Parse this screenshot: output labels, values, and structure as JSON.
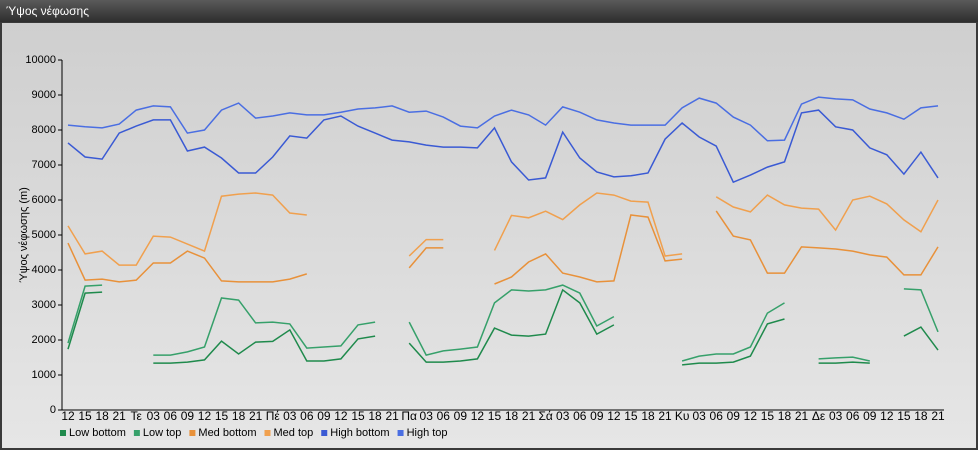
{
  "chart_data": {
    "type": "line",
    "title": "Ύψος νέφωσης",
    "ylabel": "Ύψος νέφωσης (m)",
    "categories": [
      "12",
      "15",
      "18",
      "21",
      "Τε",
      "03",
      "06",
      "09",
      "12",
      "15",
      "18",
      "21",
      "Πέ",
      "03",
      "06",
      "09",
      "12",
      "15",
      "18",
      "21",
      "Πα",
      "03",
      "06",
      "09",
      "12",
      "15",
      "18",
      "21",
      "Σά",
      "03",
      "06",
      "09",
      "12",
      "15",
      "18",
      "21",
      "Κυ",
      "03",
      "06",
      "09",
      "12",
      "15",
      "18",
      "21",
      "Δε",
      "03",
      "06",
      "09",
      "12",
      "15",
      "18",
      "21"
    ],
    "series": [
      {
        "name": "Low bottom",
        "color": "#1f8a4c",
        "values": [
          1740,
          3340,
          3370,
          null,
          null,
          1340,
          1340,
          1370,
          1430,
          1970,
          1600,
          1940,
          1960,
          2290,
          1400,
          1400,
          1460,
          2030,
          2110,
          null,
          1910,
          1370,
          1370,
          1400,
          1460,
          2340,
          2140,
          2110,
          2170,
          3430,
          3060,
          2170,
          2430,
          null,
          null,
          null,
          1290,
          1340,
          1340,
          1370,
          1540,
          2460,
          2600,
          null,
          1340,
          1340,
          1370,
          1340,
          null,
          2110,
          2370,
          1710
        ]
      },
      {
        "name": "Low top",
        "color": "#36a06a",
        "values": [
          1910,
          3540,
          3570,
          null,
          null,
          1570,
          1570,
          1660,
          1800,
          3200,
          3140,
          2490,
          2510,
          2460,
          1770,
          1800,
          1830,
          2430,
          2510,
          null,
          2510,
          1570,
          1690,
          1740,
          1800,
          3060,
          3430,
          3400,
          3430,
          3570,
          3340,
          2400,
          2670,
          null,
          null,
          null,
          1400,
          1540,
          1600,
          1600,
          1800,
          2770,
          3060,
          null,
          1460,
          1490,
          1510,
          1400,
          null,
          3460,
          3430,
          2230
        ]
      },
      {
        "name": "Med bottom",
        "color": "#e8913a",
        "values": [
          4770,
          3710,
          3740,
          3660,
          3710,
          4200,
          4200,
          4540,
          4340,
          3690,
          3660,
          3660,
          3660,
          3740,
          3890,
          null,
          null,
          null,
          null,
          null,
          4060,
          4630,
          4630,
          null,
          null,
          3600,
          3800,
          4230,
          4460,
          3910,
          3800,
          3660,
          3690,
          5570,
          5510,
          4260,
          4310,
          null,
          5690,
          4970,
          4860,
          3910,
          3910,
          4660,
          4630,
          4600,
          4540,
          4430,
          4370,
          3860,
          3860,
          4660
        ]
      },
      {
        "name": "Med top",
        "color": "#f0a04e",
        "values": [
          5260,
          4460,
          4540,
          4140,
          4140,
          4970,
          4940,
          4740,
          4540,
          6110,
          6170,
          6200,
          6140,
          5630,
          5570,
          null,
          null,
          null,
          null,
          null,
          4400,
          4870,
          4870,
          null,
          null,
          4560,
          5560,
          5490,
          5680,
          5440,
          5860,
          6200,
          6140,
          5970,
          5940,
          4400,
          4460,
          null,
          6090,
          5800,
          5660,
          6140,
          5860,
          5770,
          5740,
          5140,
          6000,
          6110,
          5890,
          5430,
          5090,
          6000
        ]
      },
      {
        "name": "High bottom",
        "color": "#3a5ad4",
        "values": [
          7630,
          7230,
          7170,
          7910,
          8110,
          8290,
          8290,
          7400,
          7510,
          7200,
          6770,
          6770,
          7230,
          7830,
          7770,
          8290,
          8400,
          8110,
          7910,
          7710,
          7660,
          7570,
          7510,
          7510,
          7490,
          8060,
          7090,
          6570,
          6630,
          7940,
          7200,
          6800,
          6660,
          6690,
          6770,
          7740,
          8200,
          7800,
          7540,
          6510,
          6710,
          6940,
          7090,
          8490,
          8570,
          8090,
          8000,
          7490,
          7290,
          6740,
          7370,
          6630
        ]
      },
      {
        "name": "High top",
        "color": "#4a6ee2",
        "values": [
          8140,
          8090,
          8060,
          8170,
          8570,
          8690,
          8660,
          7910,
          8000,
          8570,
          8770,
          8340,
          8400,
          8490,
          8430,
          8430,
          8510,
          8600,
          8630,
          8690,
          8510,
          8540,
          8370,
          8110,
          8060,
          8400,
          8570,
          8430,
          8140,
          8660,
          8510,
          8290,
          8200,
          8140,
          8140,
          8140,
          8630,
          8910,
          8770,
          8370,
          8140,
          7690,
          7710,
          8740,
          8940,
          8890,
          8860,
          8600,
          8490,
          8310,
          8630,
          8690
        ]
      }
    ],
    "ylim": [
      0,
      10000
    ],
    "yticks": [
      0,
      1000,
      2000,
      3000,
      4000,
      5000,
      6000,
      7000,
      8000,
      9000,
      10000
    ],
    "grid": false,
    "legend": "bottom-left"
  }
}
